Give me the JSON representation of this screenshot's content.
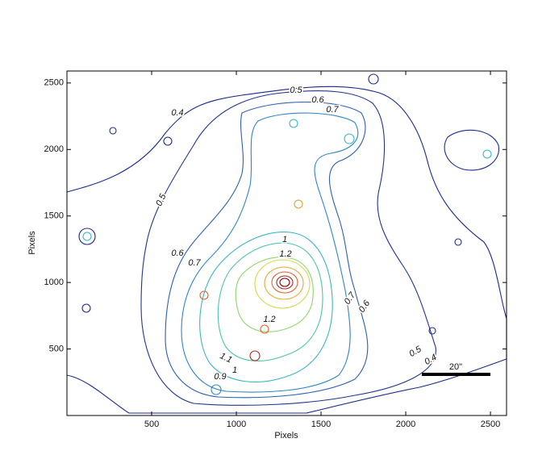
{
  "chart_data": {
    "type": "contour",
    "xlabel": "Pixels",
    "ylabel": "Pixels",
    "xlim": [
      0,
      2595
    ],
    "ylim": [
      0,
      2590
    ],
    "xticks": [
      500,
      1000,
      1500,
      2000,
      2500
    ],
    "yticks": [
      500,
      1000,
      1500,
      2000,
      2500
    ],
    "levels": [
      0.4,
      0.5,
      0.6,
      0.7,
      0.9,
      1,
      1.1,
      1.2
    ],
    "scale_bar_label": "20\""
  }
}
